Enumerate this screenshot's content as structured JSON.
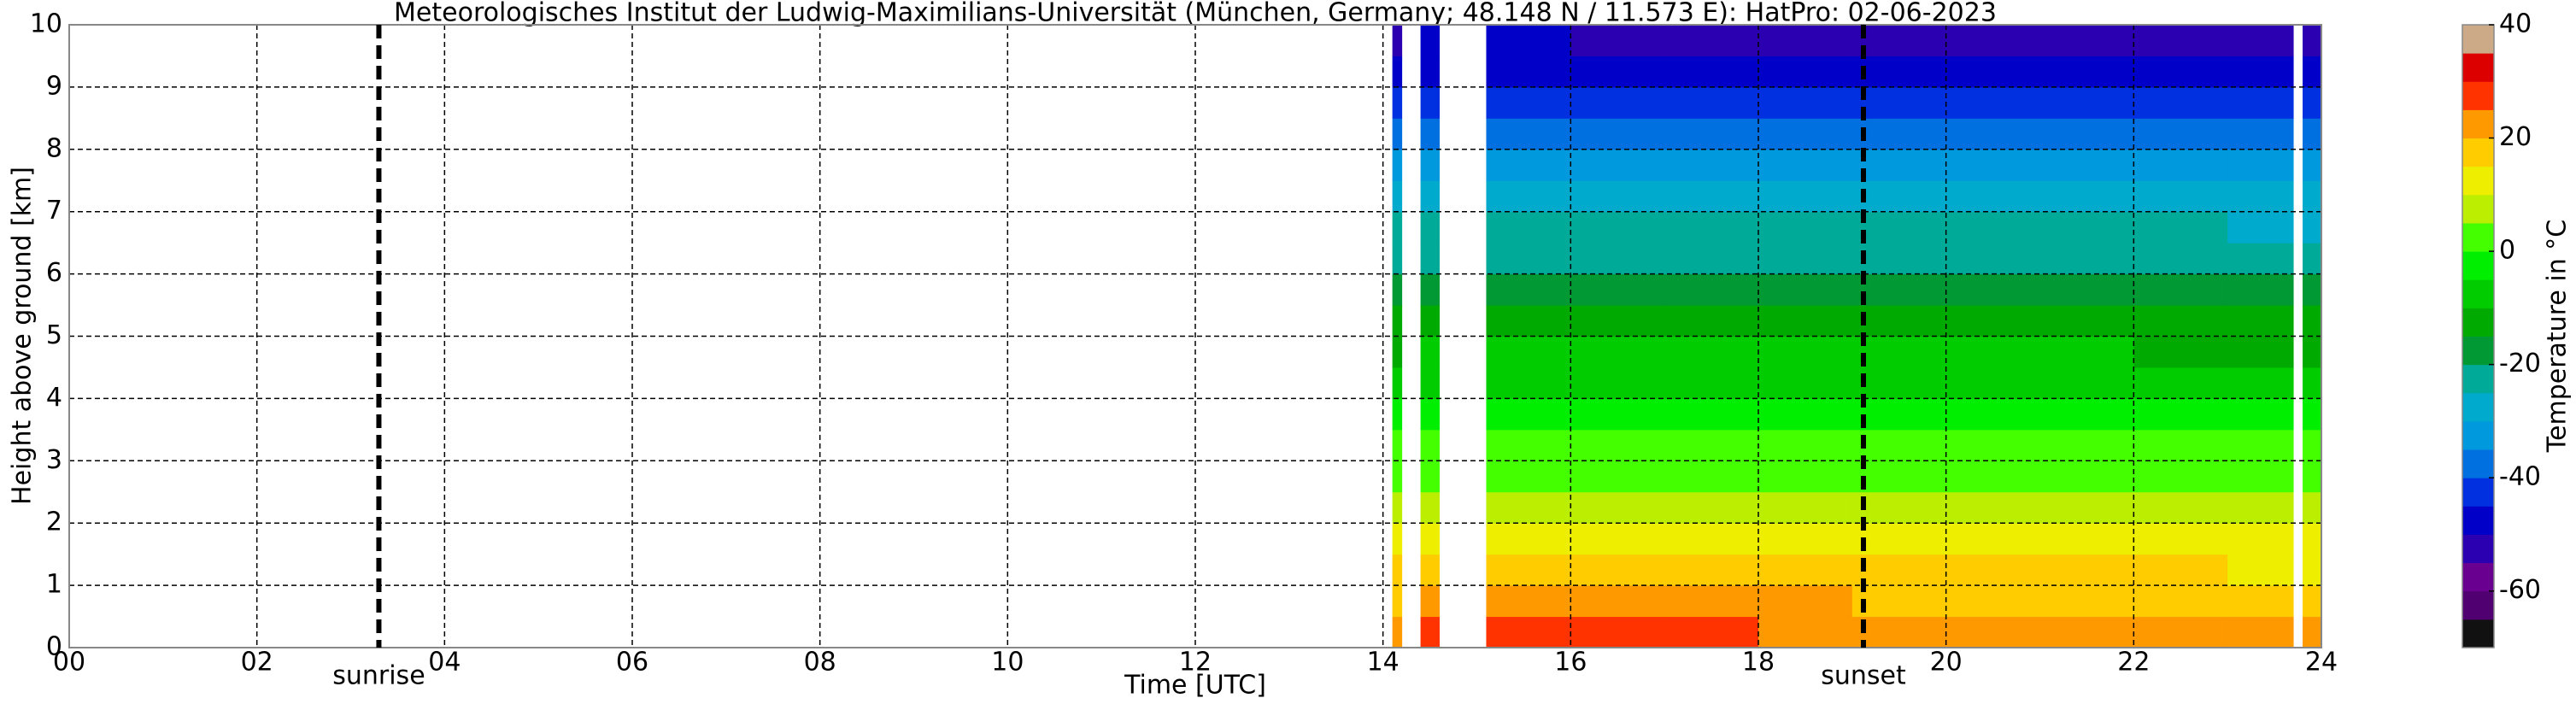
{
  "chart_data": {
    "type": "heatmap",
    "title": "Meteorologisches Institut der Ludwig-Maximilians-Universität (München, Germany; 48.148 N / 11.573 E):    HatPro: 02-06-2023",
    "xlabel": "Time [UTC]",
    "ylabel": "Height above ground [km]",
    "x_edges": [
      14.1,
      14.2,
      14.4,
      14.6,
      15.1,
      16,
      17,
      18,
      19,
      20,
      21,
      22,
      23,
      23.7,
      23.8,
      24
    ],
    "y_edges": [
      0,
      0.5,
      1,
      1.5,
      2,
      2.5,
      3,
      3.5,
      4,
      4.5,
      5,
      5.5,
      6,
      6.5,
      7,
      7.5,
      8,
      8.5,
      9,
      9.5,
      10
    ],
    "values": [
      [
        23,
        19,
        15,
        12,
        8,
        4,
        0,
        -3,
        -7,
        -11,
        -15,
        -18,
        -22,
        -25,
        -29,
        -33,
        -37,
        -42,
        -47,
        -51
      ],
      null,
      [
        27,
        21,
        17,
        13,
        9,
        5,
        1,
        -2,
        -6,
        -10,
        -14,
        -17,
        -21,
        -24,
        -28,
        -32,
        -36,
        -41,
        -46,
        -50
      ],
      null,
      [
        27,
        21,
        17,
        13,
        9,
        5,
        1,
        -2,
        -6,
        -10,
        -14,
        -17,
        -21,
        -24,
        -28,
        -32,
        -36,
        -41,
        -46,
        -50
      ],
      [
        26,
        21,
        17,
        13,
        9,
        5,
        1,
        -2,
        -6,
        -10,
        -14,
        -17,
        -21,
        -24,
        -28,
        -32,
        -36,
        -41,
        -46,
        -51
      ],
      [
        25,
        20,
        16,
        13,
        9,
        5,
        1,
        -2,
        -6,
        -10,
        -14,
        -17,
        -21,
        -24,
        -28,
        -32,
        -36,
        -41,
        -46,
        -51
      ],
      [
        24,
        20,
        16,
        12,
        9,
        5,
        1,
        -2,
        -6,
        -10,
        -14,
        -18,
        -21,
        -25,
        -28,
        -32,
        -37,
        -41,
        -46,
        -51
      ],
      [
        23,
        19,
        16,
        12,
        8,
        5,
        1,
        -3,
        -6,
        -10,
        -14,
        -18,
        -21,
        -25,
        -29,
        -33,
        -37,
        -42,
        -46,
        -51
      ],
      [
        22,
        19,
        15,
        12,
        8,
        4,
        1,
        -3,
        -6,
        -10,
        -14,
        -18,
        -22,
        -25,
        -29,
        -33,
        -37,
        -42,
        -47,
        -51
      ],
      [
        21,
        18,
        15,
        12,
        8,
        4,
        0,
        -3,
        -7,
        -10,
        -14,
        -18,
        -22,
        -25,
        -29,
        -33,
        -37,
        -42,
        -47,
        -51
      ],
      [
        21,
        18,
        15,
        11,
        8,
        4,
        0,
        -3,
        -7,
        -11,
        -15,
        -18,
        -22,
        -25,
        -29,
        -33,
        -37,
        -42,
        -47,
        -52
      ],
      [
        20,
        18,
        14,
        11,
        8,
        4,
        0,
        -3,
        -7,
        -11,
        -15,
        -18,
        -22,
        -26,
        -29,
        -33,
        -37,
        -42,
        -47,
        -52
      ],
      null,
      [
        20,
        17,
        14,
        11,
        7,
        4,
        0,
        -4,
        -7,
        -11,
        -15,
        -19,
        -22,
        -26,
        -30,
        -34,
        -38,
        -43,
        -47,
        -52
      ]
    ],
    "xlim": [
      0,
      24
    ],
    "ylim": [
      0,
      10
    ],
    "xticks": [
      {
        "value": 0,
        "label": "00"
      },
      {
        "value": 2,
        "label": "02"
      },
      {
        "value": 4,
        "label": "04"
      },
      {
        "value": 6,
        "label": "06"
      },
      {
        "value": 8,
        "label": "08"
      },
      10,
      12,
      14,
      16,
      18,
      20,
      22,
      24
    ],
    "yticks": [
      0,
      1,
      2,
      3,
      4,
      5,
      6,
      7,
      8,
      9,
      10
    ],
    "grid": true,
    "annotations": [
      {
        "text": "sunrise",
        "x": 3.3
      },
      {
        "text": "sunset",
        "x": 19.12
      }
    ],
    "colorbar": {
      "label": "Temperature in °C",
      "lim": [
        -70,
        40
      ],
      "ticks": [
        -60,
        -40,
        -20,
        0,
        20,
        40
      ],
      "colors": [
        "#111111",
        "#500070",
        "#6a0090",
        "#2a00b0",
        "#0000c8",
        "#0030e0",
        "#0070e0",
        "#0099dd",
        "#00aacc",
        "#00aa99",
        "#009933",
        "#00aa00",
        "#00cc00",
        "#00ee00",
        "#44ff00",
        "#bbee00",
        "#eeee00",
        "#ffcc00",
        "#ff9900",
        "#ff3300",
        "#dd0000",
        "#ccaa88"
      ]
    }
  }
}
